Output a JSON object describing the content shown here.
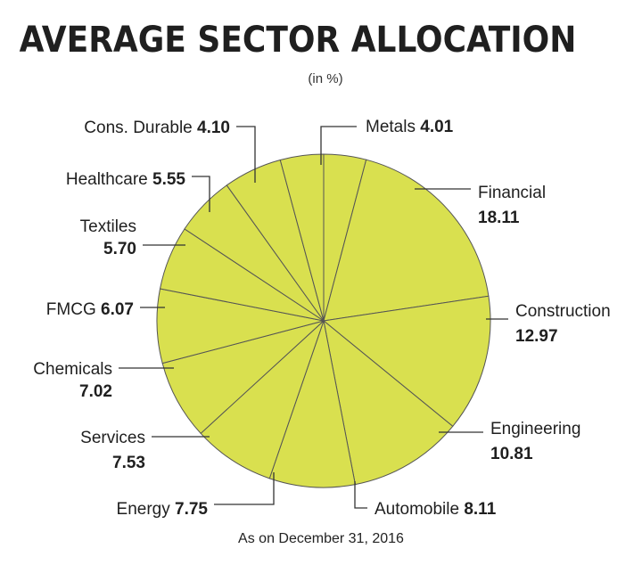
{
  "chart_data": {
    "type": "pie",
    "title": "AVERAGE SECTOR ALLOCATION",
    "subtitle": "(in %)",
    "footnote": "As on December 31, 2016",
    "slice_color": "#d9e04f",
    "edge_color": "#555555",
    "slices": [
      {
        "name": "Metals",
        "value": 4.01,
        "display": "4.01"
      },
      {
        "name": "Financial",
        "value": 18.11,
        "display": "18.11"
      },
      {
        "name": "Construction",
        "value": 12.97,
        "display": "12.97"
      },
      {
        "name": "Engineering",
        "value": 10.81,
        "display": "10.81"
      },
      {
        "name": "Automobile",
        "value": 8.11,
        "display": "8.11"
      },
      {
        "name": "Energy",
        "value": 7.75,
        "display": "7.75"
      },
      {
        "name": "Services",
        "value": 7.53,
        "display": "7.53"
      },
      {
        "name": "Chemicals",
        "value": 7.02,
        "display": "7.02"
      },
      {
        "name": "FMCG",
        "value": 6.07,
        "display": "6.07"
      },
      {
        "name": "Textiles",
        "value": 5.7,
        "display": "5.70"
      },
      {
        "name": "Healthcare",
        "value": 5.55,
        "display": "5.55"
      },
      {
        "name": "Cons. Durable",
        "value": 4.1,
        "display": "4.10"
      }
    ]
  }
}
